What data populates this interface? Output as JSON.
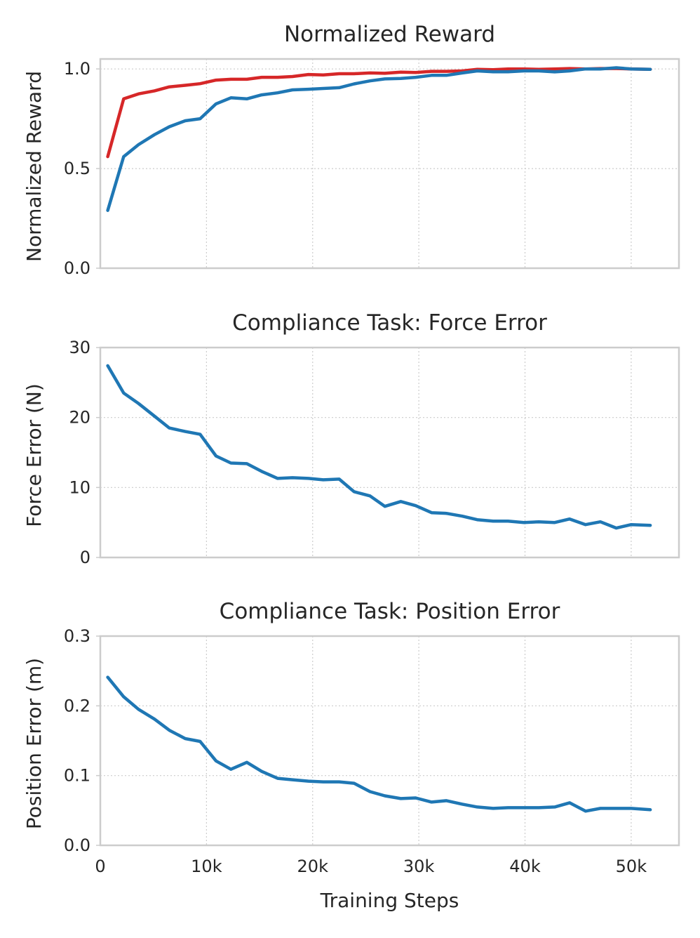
{
  "chart_data": [
    {
      "type": "line",
      "title": "Normalized Reward",
      "xlabel": "",
      "ylabel": "Normalized Reward",
      "xlim": [
        0,
        54500
      ],
      "ylim": [
        0,
        1.05
      ],
      "yticks": [
        0.0,
        0.5,
        1.0
      ],
      "ytick_labels": [
        "0.0",
        "0.5",
        "1.0"
      ],
      "xticks": [
        10000,
        20000,
        30000,
        40000,
        50000
      ],
      "xtick_labels": [],
      "grid": true,
      "x": [
        700,
        2200,
        3600,
        5100,
        6500,
        8000,
        9400,
        10900,
        12300,
        13800,
        15200,
        16700,
        18100,
        19600,
        21000,
        22500,
        23900,
        25400,
        26800,
        28300,
        29700,
        31200,
        32600,
        34100,
        35500,
        37000,
        38400,
        39900,
        41300,
        42800,
        44200,
        45700,
        47100,
        48600,
        50000,
        51800
      ],
      "series": [
        {
          "color": "#d62728",
          "values": [
            0.56,
            0.85,
            0.875,
            0.89,
            0.91,
            0.918,
            0.926,
            0.944,
            0.948,
            0.948,
            0.958,
            0.958,
            0.962,
            0.972,
            0.97,
            0.976,
            0.976,
            0.98,
            0.978,
            0.984,
            0.982,
            0.988,
            0.988,
            0.99,
            0.998,
            0.996,
            1.0,
            1.0,
            0.998,
            1.0,
            1.002,
            1.0,
            1.002,
            1.002,
            1.0,
            0.998
          ]
        },
        {
          "color": "#1f77b4",
          "values": [
            0.29,
            0.56,
            0.62,
            0.67,
            0.71,
            0.74,
            0.75,
            0.825,
            0.855,
            0.85,
            0.87,
            0.88,
            0.895,
            0.898,
            0.902,
            0.906,
            0.925,
            0.94,
            0.95,
            0.952,
            0.958,
            0.968,
            0.968,
            0.98,
            0.99,
            0.986,
            0.986,
            0.99,
            0.99,
            0.985,
            0.99,
            1.0,
            1.0,
            1.006,
            1.0,
            0.998
          ]
        }
      ]
    },
    {
      "type": "line",
      "title": "Compliance Task: Force Error",
      "xlabel": "",
      "ylabel": "Force Error (N)",
      "xlim": [
        0,
        54500
      ],
      "ylim": [
        0,
        30
      ],
      "yticks": [
        0,
        10,
        20,
        30
      ],
      "ytick_labels": [
        "0",
        "10",
        "20",
        "30"
      ],
      "xticks": [
        10000,
        20000,
        30000,
        40000,
        50000
      ],
      "xtick_labels": [],
      "grid": true,
      "x": [
        700,
        2200,
        3600,
        5100,
        6500,
        8000,
        9400,
        10900,
        12300,
        13800,
        15200,
        16700,
        18100,
        19600,
        21000,
        22500,
        23900,
        25400,
        26800,
        28300,
        29700,
        31200,
        32600,
        34100,
        35500,
        37000,
        38400,
        39900,
        41300,
        42800,
        44200,
        45700,
        47100,
        48600,
        50000,
        51800
      ],
      "series": [
        {
          "color": "#1f77b4",
          "values": [
            27.4,
            23.5,
            22.0,
            20.2,
            18.5,
            18.0,
            17.6,
            14.5,
            13.5,
            13.4,
            12.3,
            11.3,
            11.4,
            11.3,
            11.1,
            11.2,
            9.4,
            8.8,
            7.3,
            8.0,
            7.4,
            6.4,
            6.3,
            5.9,
            5.4,
            5.2,
            5.2,
            5.0,
            5.1,
            5.0,
            5.5,
            4.7,
            5.1,
            4.2,
            4.7,
            4.6
          ]
        }
      ]
    },
    {
      "type": "line",
      "title": "Compliance Task: Position Error",
      "xlabel": "Training Steps",
      "ylabel": "Position Error (m)",
      "xlim": [
        0,
        54500
      ],
      "ylim": [
        0,
        0.3
      ],
      "yticks": [
        0.0,
        0.1,
        0.2,
        0.3
      ],
      "ytick_labels": [
        "0.0",
        "0.1",
        "0.2",
        "0.3"
      ],
      "xticks": [
        0,
        10000,
        20000,
        30000,
        40000,
        50000
      ],
      "xtick_labels": [
        "0",
        "10k",
        "20k",
        "30k",
        "40k",
        "50k"
      ],
      "grid": true,
      "x": [
        700,
        2200,
        3600,
        5100,
        6500,
        8000,
        9400,
        10900,
        12300,
        13800,
        15200,
        16700,
        18100,
        19600,
        21000,
        22500,
        23900,
        25400,
        26800,
        28300,
        29700,
        31200,
        32600,
        34100,
        35500,
        37000,
        38400,
        39900,
        41300,
        42800,
        44200,
        45700,
        47100,
        48600,
        50000,
        51800
      ],
      "series": [
        {
          "color": "#1f77b4",
          "values": [
            0.241,
            0.213,
            0.195,
            0.181,
            0.165,
            0.153,
            0.149,
            0.121,
            0.109,
            0.119,
            0.106,
            0.096,
            0.094,
            0.092,
            0.091,
            0.091,
            0.089,
            0.077,
            0.071,
            0.067,
            0.068,
            0.062,
            0.064,
            0.059,
            0.055,
            0.053,
            0.054,
            0.054,
            0.054,
            0.055,
            0.061,
            0.049,
            0.053,
            0.053,
            0.053,
            0.051
          ]
        }
      ]
    }
  ]
}
